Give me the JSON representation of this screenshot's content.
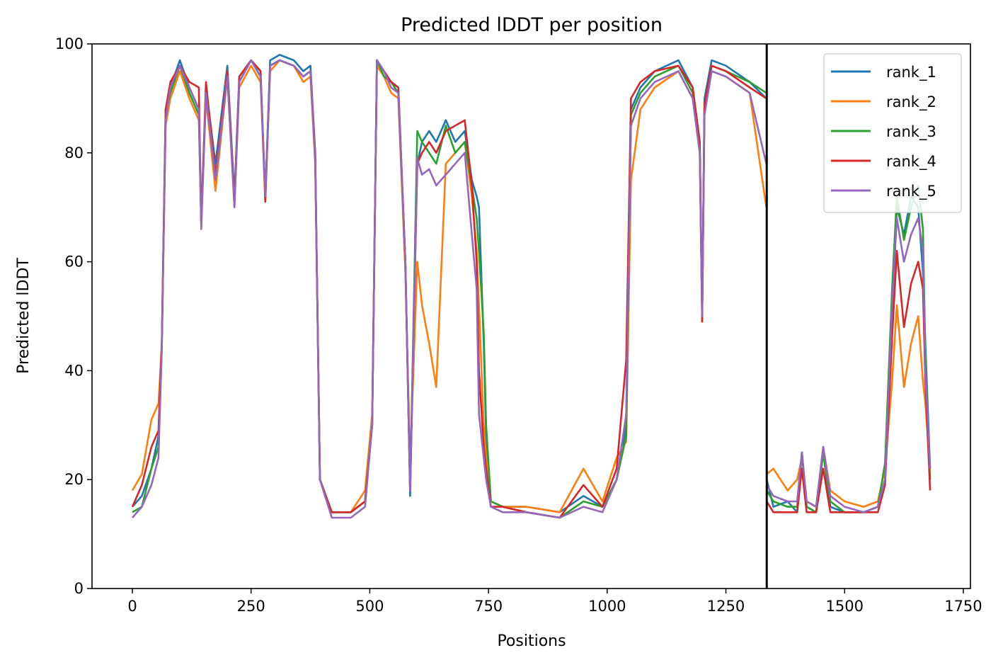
{
  "chart_data": {
    "type": "line",
    "title": "Predicted lDDT per position",
    "xlabel": "Positions",
    "ylabel": "Predicted lDDT",
    "xlim": [
      -85,
      1765
    ],
    "ylim": [
      0,
      100
    ],
    "xticks": [
      0,
      250,
      500,
      750,
      1000,
      1250,
      1500,
      1750
    ],
    "yticks": [
      0,
      20,
      40,
      60,
      80,
      100
    ],
    "grid": false,
    "legend_position": "top-right",
    "vline": {
      "x": 1336,
      "color": "#000000"
    },
    "series": [
      {
        "name": "rank_1",
        "color": "#1f77b4",
        "x": [
          0,
          20,
          40,
          55,
          62,
          70,
          80,
          100,
          120,
          140,
          145,
          155,
          175,
          200,
          215,
          225,
          250,
          270,
          280,
          290,
          310,
          340,
          360,
          375,
          385,
          395,
          420,
          460,
          490,
          505,
          515,
          530,
          545,
          560,
          575,
          585,
          600,
          610,
          625,
          640,
          660,
          680,
          700,
          715,
          725,
          730,
          740,
          745,
          755,
          780,
          830,
          900,
          950,
          990,
          1020,
          1040,
          1050,
          1070,
          1100,
          1150,
          1180,
          1195,
          1200,
          1205,
          1220,
          1250,
          1300,
          1335
        ],
        "y": [
          15,
          17,
          22,
          28,
          45,
          88,
          92,
          97,
          92,
          88,
          68,
          92,
          78,
          96,
          72,
          94,
          97,
          95,
          72,
          97,
          98,
          97,
          95,
          96,
          80,
          20,
          14,
          14,
          16,
          30,
          97,
          95,
          93,
          92,
          60,
          17,
          78,
          82,
          84,
          82,
          86,
          82,
          84,
          75,
          72,
          70,
          45,
          28,
          16,
          15,
          15,
          14,
          17,
          15,
          20,
          30,
          88,
          92,
          95,
          97,
          92,
          82,
          50,
          90,
          97,
          96,
          93,
          90
        ]
      },
      {
        "name": "rank_2",
        "color": "#ff7f0e",
        "x": [
          0,
          20,
          40,
          55,
          62,
          70,
          80,
          100,
          120,
          140,
          145,
          155,
          175,
          200,
          215,
          225,
          250,
          270,
          280,
          290,
          310,
          340,
          360,
          375,
          385,
          395,
          420,
          460,
          490,
          505,
          515,
          530,
          545,
          560,
          575,
          585,
          600,
          610,
          625,
          640,
          660,
          680,
          700,
          715,
          725,
          730,
          740,
          745,
          755,
          780,
          830,
          900,
          950,
          990,
          1020,
          1040,
          1050,
          1070,
          1100,
          1150,
          1180,
          1195,
          1200,
          1205,
          1220,
          1250,
          1300,
          1335
        ],
        "y": [
          18,
          21,
          31,
          34,
          45,
          85,
          90,
          95,
          90,
          86,
          67,
          90,
          73,
          94,
          70,
          92,
          96,
          93,
          71,
          95,
          97,
          96,
          93,
          94,
          78,
          20,
          14,
          14,
          18,
          32,
          96,
          94,
          91,
          90,
          58,
          23,
          60,
          52,
          45,
          37,
          78,
          80,
          82,
          72,
          62,
          52,
          30,
          24,
          16,
          15,
          15,
          14,
          22,
          16,
          24,
          27,
          75,
          88,
          92,
          95,
          90,
          80,
          49,
          88,
          95,
          94,
          91,
          70
        ]
      },
      {
        "name": "rank_3",
        "color": "#2ca02c",
        "x": [
          0,
          20,
          40,
          55,
          62,
          70,
          80,
          100,
          120,
          140,
          145,
          155,
          175,
          200,
          215,
          225,
          250,
          270,
          280,
          290,
          310,
          340,
          360,
          375,
          385,
          395,
          420,
          460,
          490,
          505,
          515,
          530,
          545,
          560,
          575,
          585,
          600,
          610,
          625,
          640,
          660,
          680,
          700,
          715,
          725,
          730,
          740,
          745,
          755,
          780,
          830,
          900,
          950,
          990,
          1020,
          1040,
          1050,
          1070,
          1100,
          1150,
          1180,
          1195,
          1200,
          1205,
          1220,
          1250,
          1300,
          1335
        ],
        "y": [
          14,
          15,
          22,
          26,
          44,
          87,
          91,
          96,
          91,
          87,
          67,
          91,
          76,
          95,
          71,
          93,
          97,
          94,
          72,
          96,
          97,
          96,
          94,
          95,
          79,
          20,
          14,
          14,
          16,
          30,
          97,
          94,
          93,
          91,
          60,
          18,
          84,
          82,
          80,
          78,
          85,
          80,
          82,
          74,
          68,
          62,
          47,
          30,
          16,
          15,
          14,
          13,
          16,
          15,
          20,
          28,
          87,
          91,
          94,
          96,
          91,
          81,
          50,
          89,
          96,
          95,
          93,
          91
        ]
      },
      {
        "name": "rank_4",
        "color": "#d62728",
        "x": [
          0,
          20,
          40,
          55,
          62,
          70,
          80,
          100,
          120,
          140,
          145,
          155,
          175,
          200,
          215,
          225,
          250,
          270,
          280,
          290,
          310,
          340,
          360,
          375,
          385,
          395,
          420,
          460,
          490,
          505,
          515,
          530,
          545,
          560,
          575,
          585,
          600,
          610,
          625,
          640,
          660,
          680,
          700,
          715,
          725,
          730,
          740,
          745,
          755,
          780,
          830,
          900,
          950,
          990,
          1020,
          1040,
          1050,
          1070,
          1100,
          1150,
          1180,
          1195,
          1200,
          1205,
          1220,
          1250,
          1300,
          1335
        ],
        "y": [
          15,
          19,
          26,
          29,
          45,
          88,
          93,
          96,
          93,
          92,
          67,
          93,
          76,
          95,
          71,
          94,
          97,
          95,
          71,
          96,
          97,
          96,
          94,
          95,
          80,
          20,
          14,
          14,
          16,
          30,
          97,
          95,
          93,
          92,
          60,
          18,
          78,
          80,
          82,
          80,
          84,
          85,
          86,
          74,
          60,
          40,
          26,
          22,
          15,
          15,
          14,
          13,
          19,
          15,
          22,
          42,
          90,
          93,
          95,
          96,
          92,
          82,
          49,
          89,
          96,
          95,
          92,
          90
        ]
      },
      {
        "name": "rank_5",
        "color": "#9467bd",
        "x": [
          0,
          20,
          40,
          55,
          62,
          70,
          80,
          100,
          120,
          140,
          145,
          155,
          175,
          200,
          215,
          225,
          250,
          270,
          280,
          290,
          310,
          340,
          360,
          375,
          385,
          395,
          420,
          460,
          490,
          505,
          515,
          530,
          545,
          560,
          575,
          585,
          600,
          610,
          625,
          640,
          660,
          680,
          700,
          715,
          725,
          730,
          740,
          745,
          755,
          780,
          830,
          900,
          950,
          990,
          1020,
          1040,
          1050,
          1070,
          1100,
          1150,
          1180,
          1195,
          1200,
          1205,
          1220,
          1250,
          1300,
          1335
        ],
        "y": [
          13,
          15,
          19,
          24,
          44,
          86,
          92,
          96,
          92,
          88,
          66,
          91,
          75,
          94,
          70,
          93,
          97,
          94,
          72,
          96,
          97,
          96,
          94,
          95,
          79,
          20,
          13,
          13,
          15,
          30,
          97,
          95,
          92,
          91,
          60,
          18,
          79,
          76,
          77,
          74,
          76,
          78,
          80,
          65,
          55,
          32,
          24,
          20,
          15,
          14,
          14,
          13,
          15,
          14,
          20,
          32,
          85,
          90,
          93,
          95,
          90,
          80,
          50,
          87,
          95,
          94,
          91,
          78
        ]
      },
      {
        "name": "",
        "color": "#1f77b4",
        "x": [
          1336,
          1350,
          1380,
          1400,
          1410,
          1420,
          1440,
          1455,
          1470,
          1500,
          1540,
          1570,
          1585,
          1600,
          1610,
          1625,
          1640,
          1655,
          1665,
          1670,
          1680
        ],
        "y": [
          20,
          15,
          16,
          14,
          25,
          15,
          14,
          25,
          15,
          14,
          14,
          15,
          20,
          50,
          70,
          65,
          72,
          70,
          58,
          45,
          22
        ]
      },
      {
        "name": "",
        "color": "#ff7f0e",
        "x": [
          1336,
          1350,
          1380,
          1400,
          1410,
          1420,
          1440,
          1455,
          1470,
          1500,
          1540,
          1570,
          1585,
          1600,
          1610,
          1625,
          1640,
          1655,
          1665,
          1670,
          1680
        ],
        "y": [
          21,
          22,
          18,
          20,
          24,
          16,
          15,
          26,
          18,
          16,
          15,
          16,
          22,
          38,
          52,
          37,
          45,
          50,
          38,
          34,
          22
        ]
      },
      {
        "name": "",
        "color": "#2ca02c",
        "x": [
          1336,
          1350,
          1380,
          1400,
          1410,
          1420,
          1440,
          1455,
          1470,
          1500,
          1540,
          1570,
          1585,
          1600,
          1610,
          1625,
          1640,
          1655,
          1665,
          1670,
          1680
        ],
        "y": [
          18,
          16,
          15,
          15,
          25,
          15,
          14,
          25,
          16,
          14,
          14,
          15,
          23,
          55,
          72,
          64,
          70,
          74,
          66,
          43,
          20
        ]
      },
      {
        "name": "",
        "color": "#d62728",
        "x": [
          1336,
          1350,
          1380,
          1400,
          1410,
          1420,
          1440,
          1455,
          1470,
          1500,
          1540,
          1570,
          1585,
          1600,
          1610,
          1625,
          1640,
          1655,
          1665,
          1670,
          1680
        ],
        "y": [
          16,
          14,
          14,
          14,
          22,
          14,
          14,
          22,
          14,
          14,
          14,
          14,
          19,
          46,
          62,
          48,
          56,
          60,
          55,
          38,
          18
        ]
      },
      {
        "name": "",
        "color": "#9467bd",
        "x": [
          1336,
          1350,
          1380,
          1400,
          1410,
          1420,
          1440,
          1455,
          1470,
          1500,
          1540,
          1570,
          1585,
          1600,
          1610,
          1625,
          1640,
          1655,
          1665,
          1670,
          1680
        ],
        "y": [
          19,
          17,
          16,
          16,
          25,
          16,
          15,
          26,
          17,
          15,
          14,
          15,
          20,
          52,
          68,
          60,
          65,
          68,
          62,
          40,
          22
        ]
      }
    ]
  }
}
